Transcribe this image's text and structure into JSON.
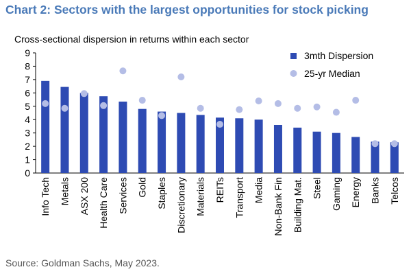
{
  "chart_data": {
    "type": "bar",
    "title": "Chart 2: Sectors with the largest opportunities for stock picking",
    "subtitle": "Cross-sectional dispersion in returns within each sector",
    "source": "Source: Goldman Sachs, May 2023.",
    "categories": [
      "Info Tech",
      "Metals",
      "ASX 200",
      "Health Care",
      "Services",
      "Gold",
      "Staples",
      "Discretionary",
      "Materials",
      "REITs",
      "Transport",
      "Media",
      "Non-Bank Fin",
      "Building Mat.",
      "Steel",
      "Gaming",
      "Energy",
      "Banks",
      "Telcos"
    ],
    "series": [
      {
        "name": "3mth Dispersion",
        "style": "bar",
        "color": "#2e4bb3",
        "values": [
          6.9,
          6.45,
          6.0,
          5.75,
          5.35,
          4.8,
          4.6,
          4.5,
          4.35,
          4.15,
          4.1,
          4.0,
          3.6,
          3.4,
          3.1,
          3.0,
          2.7,
          2.35,
          2.3
        ]
      },
      {
        "name": "25-yr Median",
        "style": "marker",
        "color": "#b4bde6",
        "values": [
          5.2,
          4.85,
          5.95,
          5.05,
          7.65,
          5.45,
          4.3,
          7.2,
          4.85,
          3.65,
          4.75,
          5.4,
          5.2,
          4.85,
          4.95,
          4.55,
          5.45,
          2.2,
          2.2
        ]
      }
    ],
    "ylim": [
      0,
      9
    ],
    "yticks": [
      0,
      1,
      2,
      3,
      4,
      5,
      6,
      7,
      8,
      9
    ],
    "xlabel": "",
    "ylabel": "",
    "grid": false,
    "legend_position": "top-right"
  }
}
